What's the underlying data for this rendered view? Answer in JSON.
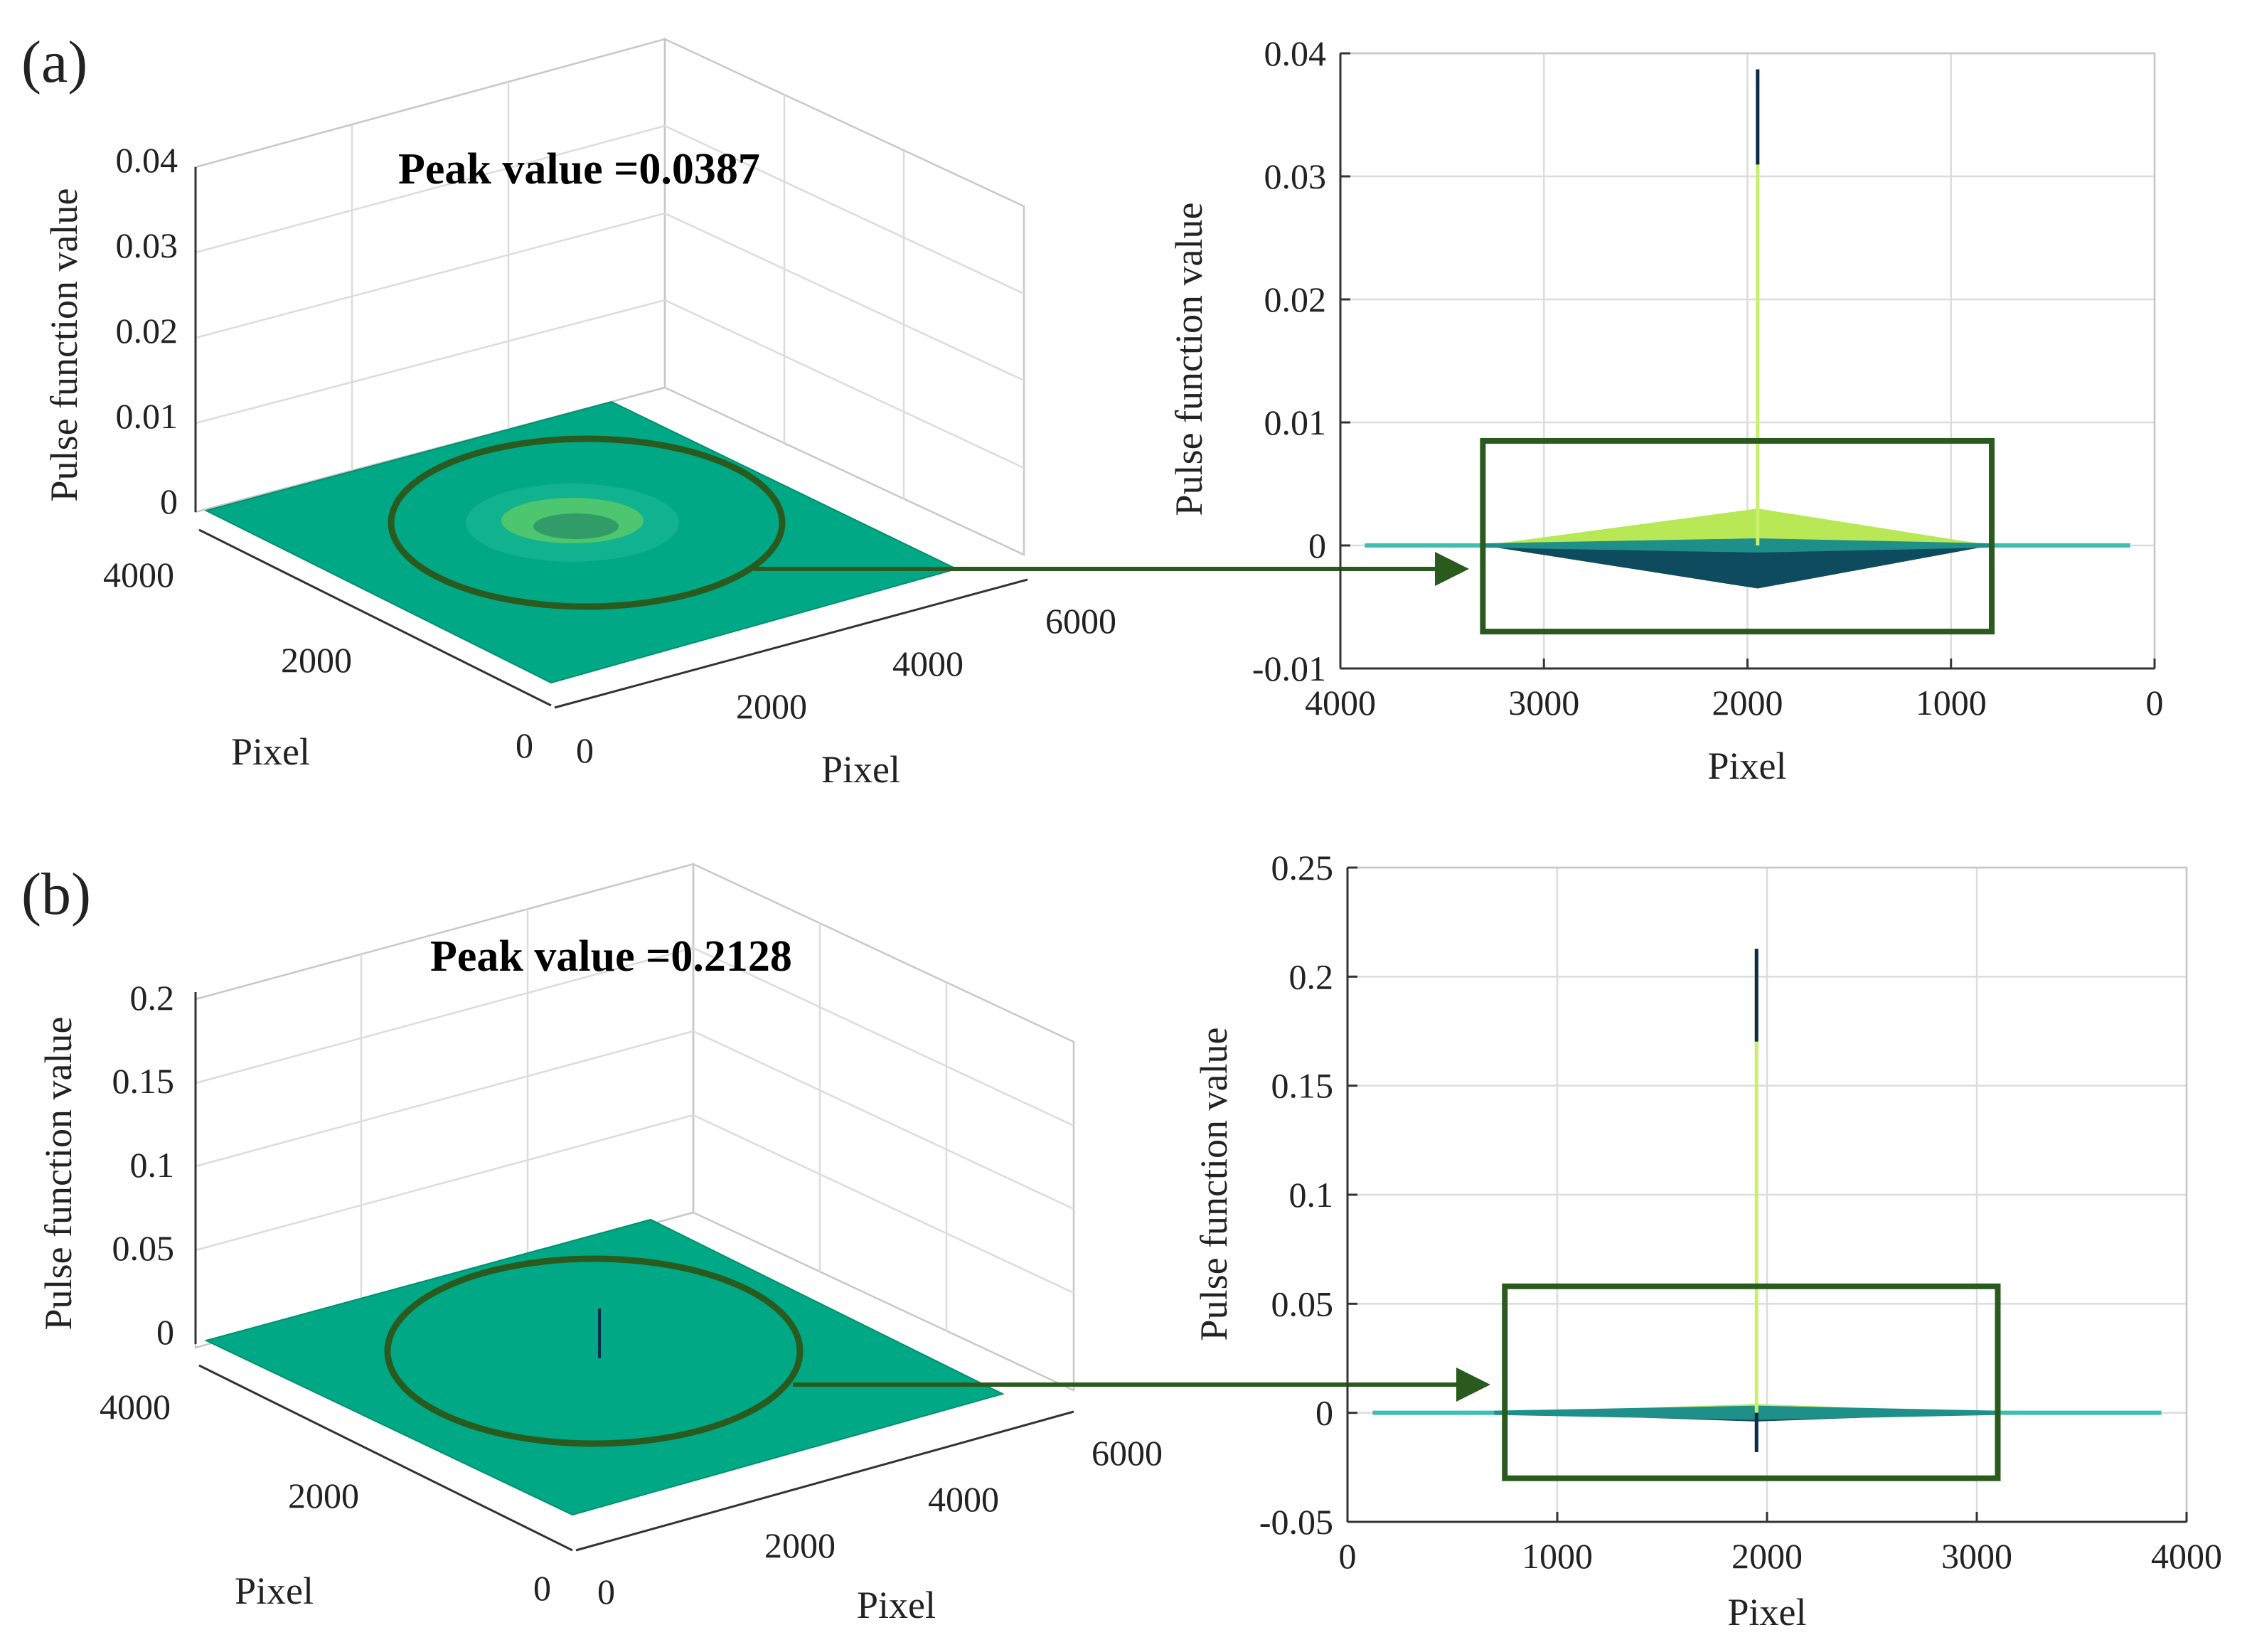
{
  "figure": {
    "panel_a_label": "(a)",
    "panel_b_label": "(b)"
  },
  "colors": {
    "surface": "#00a886",
    "surface_dark": "#009a7b",
    "annotation_green": "#2a5a1e",
    "spike_light": "#c8f06a",
    "spike_dark": "#0b2b4a"
  },
  "chart_data": [
    {
      "id": "a-3d",
      "type": "surface",
      "title": "Peak value =0.0387",
      "peak_value": 0.0387,
      "zlabel": "Pulse function value",
      "xlabel": "Pixel",
      "ylabel": "Pixel",
      "zlim": [
        0,
        0.04
      ],
      "zticks": [
        "0",
        "0.01",
        "0.02",
        "0.03",
        "0.04"
      ],
      "xticks": [
        "0",
        "2000",
        "4000",
        "6000"
      ],
      "yticks": [
        "0",
        "2000",
        "4000"
      ]
    },
    {
      "id": "a-2d",
      "type": "line",
      "title": "",
      "xlabel": "Pixel",
      "ylabel": "Pulse function value",
      "xlim": [
        4000,
        0
      ],
      "ylim": [
        -0.01,
        0.04
      ],
      "xticks": [
        "4000",
        "3000",
        "2000",
        "1000",
        "0"
      ],
      "yticks": [
        "-0.01",
        "0",
        "0.01",
        "0.02",
        "0.03",
        "0.04"
      ],
      "peak_x": 1950,
      "peak_value": 0.0387,
      "spread_upper": 0.003,
      "spread_lower": -0.0035,
      "spread_range": [
        3300,
        800
      ],
      "zoom_box_x": [
        3300,
        800
      ],
      "zoom_box_y": [
        -0.007,
        0.0085
      ]
    },
    {
      "id": "b-3d",
      "type": "surface",
      "title": "Peak value =0.2128",
      "peak_value": 0.2128,
      "zlabel": "Pulse function value",
      "xlabel": "Pixel",
      "ylabel": "Pixel",
      "zlim": [
        0,
        0.2
      ],
      "zticks": [
        "0",
        "0.05",
        "0.1",
        "0.15",
        "0.2"
      ],
      "xticks": [
        "0",
        "2000",
        "4000",
        "6000"
      ],
      "yticks": [
        "0",
        "2000",
        "4000"
      ]
    },
    {
      "id": "b-2d",
      "type": "line",
      "title": "",
      "xlabel": "Pixel",
      "ylabel": "Pulse function value",
      "xlim": [
        0,
        4000
      ],
      "ylim": [
        -0.05,
        0.25
      ],
      "xticks": [
        "0",
        "1000",
        "2000",
        "3000",
        "4000"
      ],
      "yticks": [
        "-0.05",
        "0",
        "0.05",
        "0.1",
        "0.15",
        "0.2",
        "0.25"
      ],
      "peak_x": 1950,
      "peak_value": 0.2128,
      "spread_upper": 0.004,
      "spread_lower": -0.004,
      "spread_range": [
        700,
        3100
      ],
      "zoom_box_x": [
        750,
        3100
      ],
      "zoom_box_y": [
        -0.03,
        0.058
      ]
    }
  ]
}
